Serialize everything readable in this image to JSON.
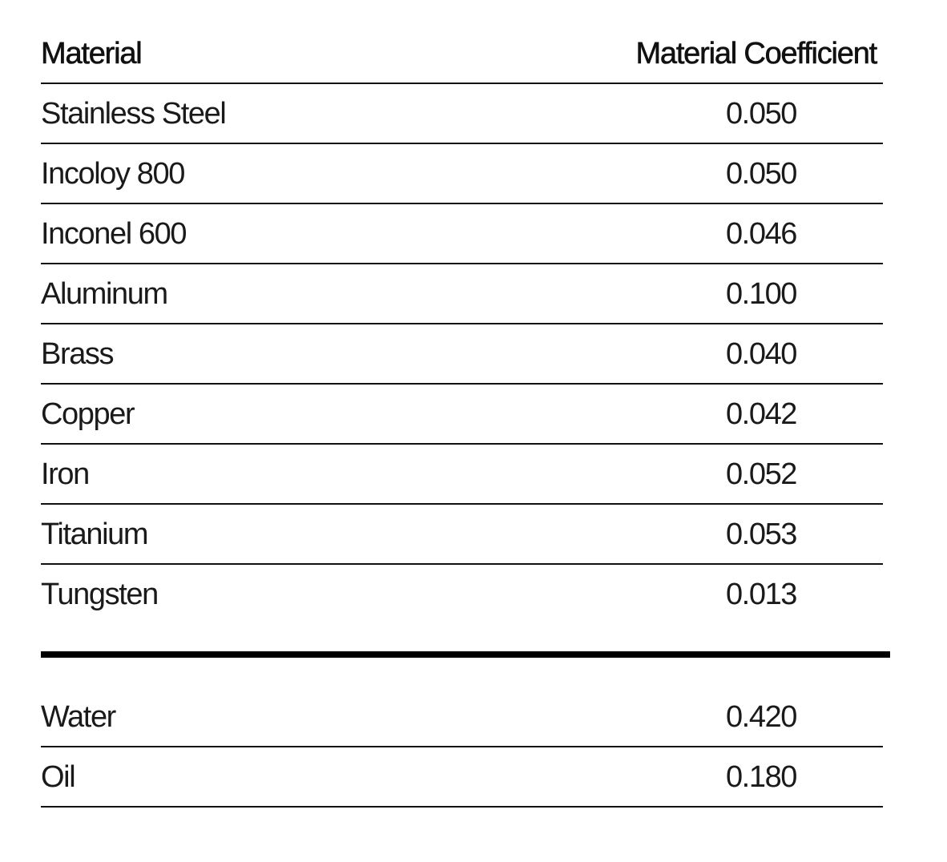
{
  "table": {
    "headers": {
      "material": "Material",
      "coefficient": "Material Coefficient"
    },
    "metals": [
      {
        "material": "Stainless Steel",
        "coefficient": "0.050"
      },
      {
        "material": "Incoloy 800",
        "coefficient": "0.050"
      },
      {
        "material": "Inconel 600",
        "coefficient": "0.046"
      },
      {
        "material": "Aluminum",
        "coefficient": "0.100"
      },
      {
        "material": "Brass",
        "coefficient": "0.040"
      },
      {
        "material": "Copper",
        "coefficient": "0.042"
      },
      {
        "material": "Iron",
        "coefficient": "0.052"
      },
      {
        "material": "Titanium",
        "coefficient": "0.053"
      },
      {
        "material": "Tungsten",
        "coefficient": "0.013"
      }
    ],
    "liquids": [
      {
        "material": "Water",
        "coefficient": "0.420"
      },
      {
        "material": "Oil",
        "coefficient": "0.180"
      }
    ]
  }
}
